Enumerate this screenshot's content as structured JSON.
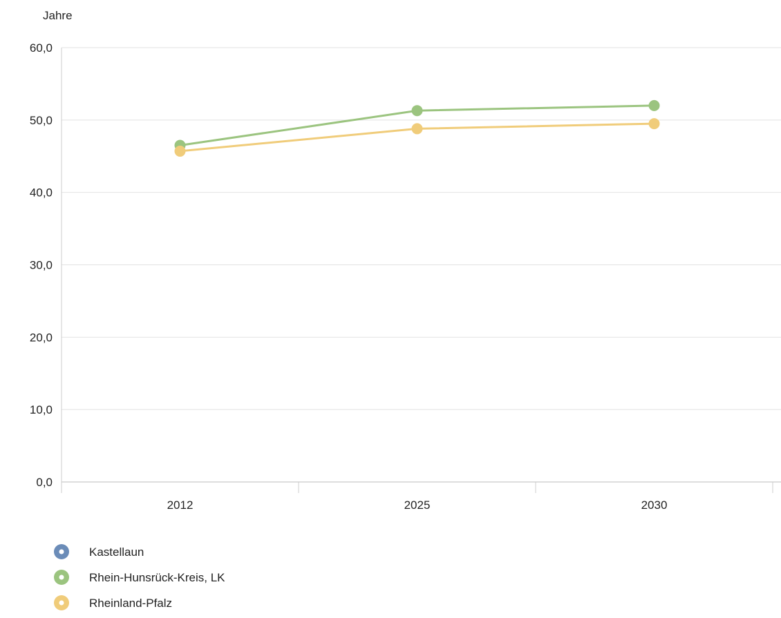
{
  "chart_data": {
    "type": "line",
    "ylabel": "Jahre",
    "categories": [
      "2012",
      "2025",
      "2030"
    ],
    "ylim": [
      0,
      60
    ],
    "yticks": [
      "0,0",
      "10,0",
      "20,0",
      "30,0",
      "40,0",
      "50,0",
      "60,0"
    ],
    "grid": true,
    "legend_position": "bottom-left",
    "series": [
      {
        "name": "Kastellaun",
        "color": "#6b8cb8",
        "values": [
          null,
          null,
          null
        ]
      },
      {
        "name": "Rhein-Hunsrück-Kreis, LK",
        "color": "#9bc47f",
        "values": [
          46.5,
          51.3,
          52.0
        ]
      },
      {
        "name": "Rheinland-Pfalz",
        "color": "#f0cc7a",
        "values": [
          45.7,
          48.8,
          49.5
        ]
      }
    ]
  }
}
